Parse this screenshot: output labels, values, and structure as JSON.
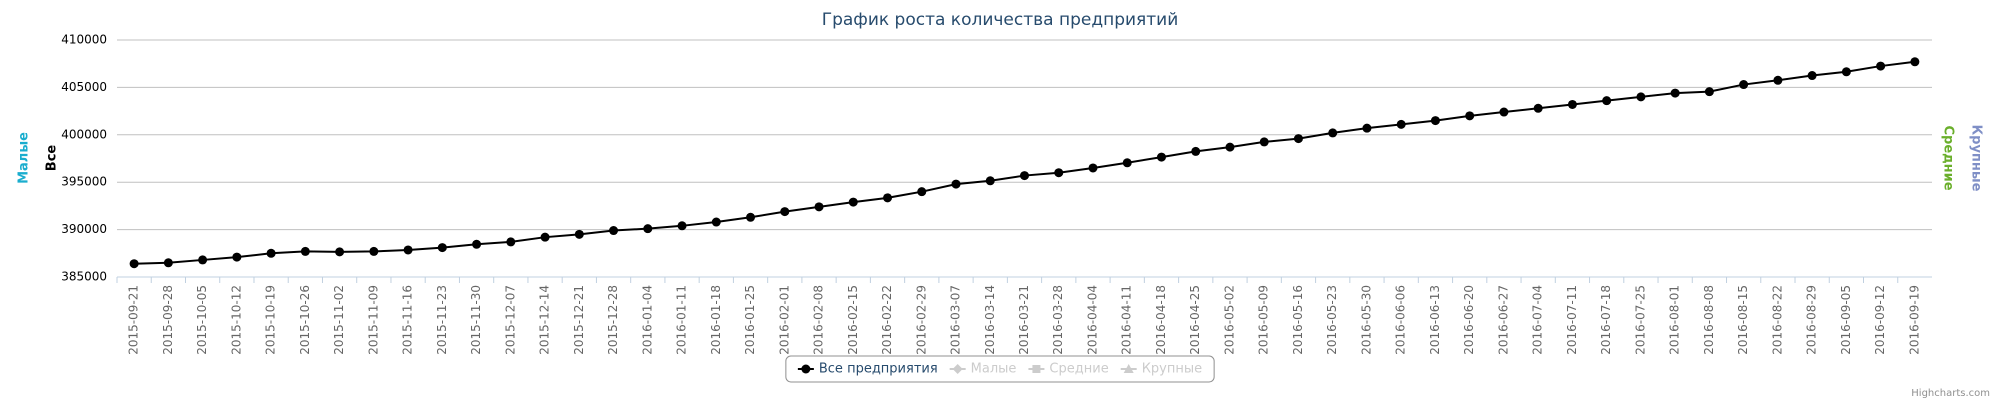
{
  "chart_data": {
    "type": "line",
    "title": "График роста количества предприятий",
    "ylabel": "Все",
    "extra_axis_titles": [
      {
        "text": "Малые",
        "color": "#1aadce",
        "side": "left"
      },
      {
        "text": "Средние",
        "color": "#6aaf2b",
        "side": "right"
      },
      {
        "text": "Крупные",
        "color": "#7f8fc6",
        "side": "right"
      }
    ],
    "categories": [
      "2015-09-21",
      "2015-09-28",
      "2015-10-05",
      "2015-10-12",
      "2015-10-19",
      "2015-10-26",
      "2015-11-02",
      "2015-11-09",
      "2015-11-16",
      "2015-11-23",
      "2015-11-30",
      "2015-12-07",
      "2015-12-14",
      "2015-12-21",
      "2015-12-28",
      "2016-01-04",
      "2016-01-11",
      "2016-01-18",
      "2016-01-25",
      "2016-02-01",
      "2016-02-08",
      "2016-02-15",
      "2016-02-22",
      "2016-02-29",
      "2016-03-07",
      "2016-03-14",
      "2016-03-21",
      "2016-03-28",
      "2016-04-04",
      "2016-04-11",
      "2016-04-18",
      "2016-04-25",
      "2016-05-02",
      "2016-05-09",
      "2016-05-16",
      "2016-05-23",
      "2016-05-30",
      "2016-06-06",
      "2016-06-13",
      "2016-06-20",
      "2016-06-27",
      "2016-07-04",
      "2016-07-11",
      "2016-07-18",
      "2016-07-25",
      "2016-08-01",
      "2016-08-08",
      "2016-08-15",
      "2016-08-22",
      "2016-08-29",
      "2016-09-05",
      "2016-09-12",
      "2016-09-19"
    ],
    "series": [
      {
        "name": "Все предприятия",
        "color": "#000000",
        "marker": "circle",
        "visible": true,
        "values": [
          386400,
          386500,
          386800,
          387100,
          387500,
          387700,
          387650,
          387700,
          387850,
          388100,
          388450,
          388700,
          389200,
          389500,
          389900,
          390100,
          390400,
          390800,
          391300,
          391900,
          392400,
          392900,
          393350,
          394000,
          394800,
          395150,
          395700,
          396000,
          396500,
          397050,
          397650,
          398250,
          398700,
          399250,
          399600,
          400200,
          400700,
          401100,
          401500,
          402000,
          402400,
          402800,
          403200,
          403600,
          404000,
          404400,
          404550,
          405300,
          405750,
          406250,
          406650,
          407250,
          407700
        ]
      },
      {
        "name": "Малые",
        "color": "#cccccc",
        "marker": "diamond",
        "visible": false
      },
      {
        "name": "Средние",
        "color": "#cccccc",
        "marker": "square",
        "visible": false
      },
      {
        "name": "Крупные",
        "color": "#cccccc",
        "marker": "triangle",
        "visible": false
      }
    ],
    "ylim": [
      385000,
      410000
    ],
    "yticks": [
      385000,
      390000,
      395000,
      400000,
      405000,
      410000
    ],
    "grid": true,
    "legend": "bottom",
    "credits": "Highcharts.com"
  }
}
